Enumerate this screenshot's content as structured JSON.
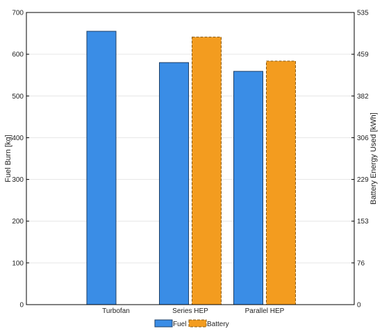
{
  "chart_data": {
    "type": "bar",
    "categories": [
      "Turbofan",
      "Series HEP",
      "Parallel HEP"
    ],
    "series": [
      {
        "name": "Fuel",
        "axis": "left",
        "color": "#3a8de6",
        "border": "#1e3f66",
        "values": [
          655,
          580,
          559
        ]
      },
      {
        "name": "Battery",
        "axis": "right",
        "color": "#f39c1f",
        "border": "#8a5b14",
        "dashed": true,
        "values": [
          null,
          490,
          446
        ]
      }
    ],
    "ylabel": "Fuel Burn [kg]",
    "ylabel_right": "Battery Energy Used [kWh]",
    "ylim": [
      0,
      700
    ],
    "ylim_right": [
      0,
      535
    ],
    "yticks": [
      "0",
      "100",
      "200",
      "300",
      "400",
      "500",
      "600",
      "700"
    ],
    "yticks_right": [
      "0",
      "76",
      "153",
      "229",
      "306",
      "382",
      "459",
      "535"
    ],
    "grid": true,
    "legend": "bottom-center"
  }
}
